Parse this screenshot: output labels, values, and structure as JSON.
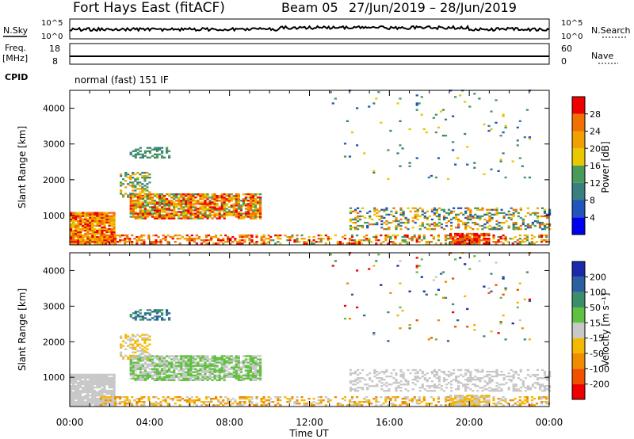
{
  "header": {
    "title": "Fort Hays East (fitACF)",
    "beam": "Beam 05",
    "dates": "27/Jun/2019 – 28/Jun/2019"
  },
  "top_panels": {
    "nsky_label": "N.Sky",
    "nsearch_label": "N.Search",
    "nsky_ticks": [
      "10^5",
      "10^0"
    ],
    "nsearch_ticks": [
      "10^5",
      "10^0"
    ],
    "freq_label_line1": "Freq.",
    "freq_label_line2": "[MHz]",
    "freq_ticks": [
      "18",
      "8"
    ],
    "nave_label": "Nave",
    "nave_ticks": [
      "60",
      "0"
    ],
    "cpid_label": "CPID",
    "cpid_text": "normal (fast) 151 IF"
  },
  "colors": {
    "power_scale": [
      "#0000ee",
      "#2255bb",
      "#3a7f7f",
      "#4a9a5a",
      "#e8c800",
      "#f0a000",
      "#f07000",
      "#ee0000"
    ],
    "velocity_scale": [
      "#ee0000",
      "#f05000",
      "#f08c00",
      "#f5b800",
      "#c8c8c8",
      "#60c040",
      "#3a8f6a",
      "#2a5fa0",
      "#1a2aaa"
    ],
    "frame": "#000000"
  },
  "chart_data": [
    {
      "type": "heatmap",
      "name": "power",
      "xlabel": "",
      "ylabel": "Slant Range [km]",
      "x_ticks": [
        "00:00",
        "04:00",
        "08:00",
        "12:00",
        "16:00",
        "20:00",
        "00:00"
      ],
      "y_ticks": [
        1000,
        2000,
        3000,
        4000
      ],
      "xlim_hours": [
        0,
        24
      ],
      "ylim": [
        180,
        4500
      ],
      "colorbar_label": "Power [dB]",
      "colorbar_ticks": [
        4,
        8,
        12,
        16,
        20,
        24,
        28
      ],
      "colorbar_range": [
        0,
        32
      ]
    },
    {
      "type": "heatmap",
      "name": "velocity",
      "xlabel": "Time UT",
      "ylabel": "Slant Range [km]",
      "x_ticks": [
        "00:00",
        "04:00",
        "08:00",
        "12:00",
        "16:00",
        "20:00",
        "00:00"
      ],
      "y_ticks": [
        1000,
        2000,
        3000,
        4000
      ],
      "xlim_hours": [
        0,
        24
      ],
      "ylim": [
        180,
        4500
      ],
      "colorbar_label": "Velocity [m s⁻¹]",
      "colorbar_ticks": [
        "-200",
        "-100",
        "-50",
        "-15",
        "15",
        "50",
        "100",
        "200"
      ]
    }
  ]
}
